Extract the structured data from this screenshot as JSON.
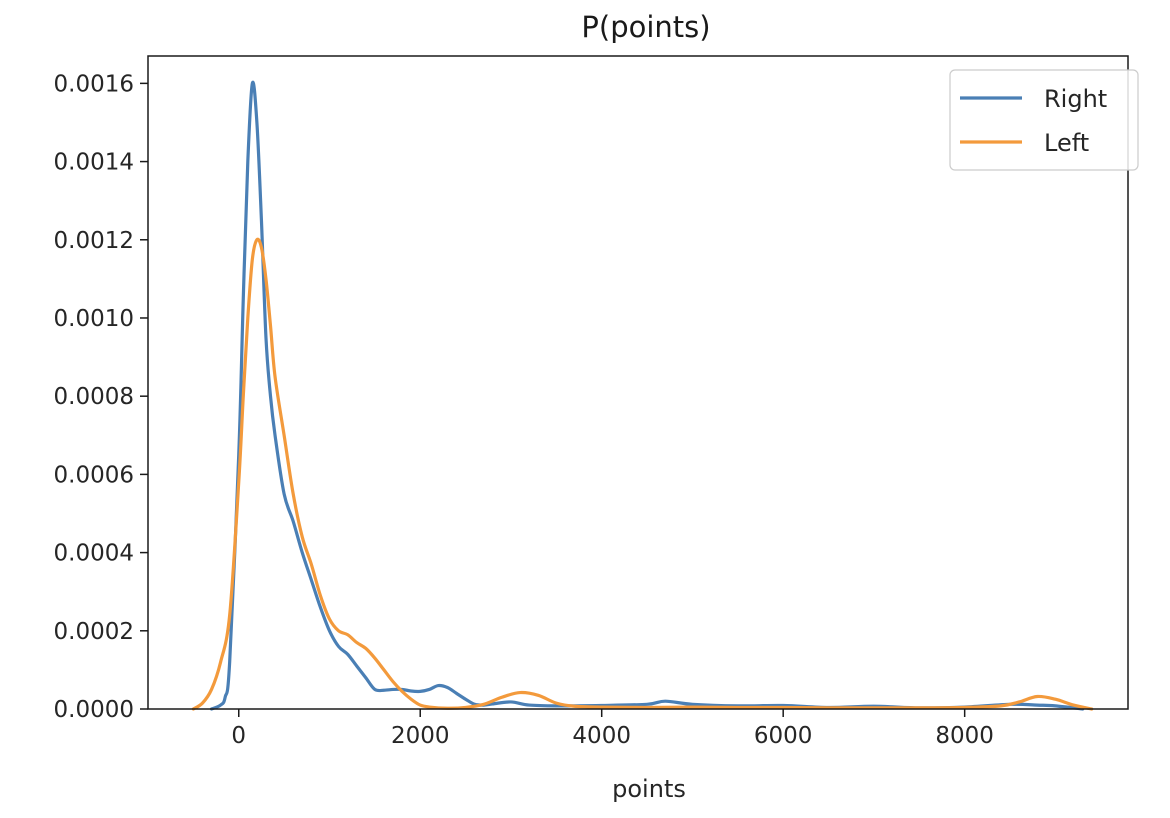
{
  "chart_data": {
    "type": "line",
    "title": "P(points)",
    "xlabel": "points",
    "ylabel": "",
    "xlim": [
      -1000,
      9800
    ],
    "ylim": [
      0,
      0.00167
    ],
    "xticks": [
      0,
      2000,
      4000,
      6000,
      8000
    ],
    "xtick_labels": [
      "0",
      "2000",
      "4000",
      "6000",
      "8000"
    ],
    "yticks": [
      0,
      0.0002,
      0.0004,
      0.0006,
      0.0008,
      0.001,
      0.0012,
      0.0014,
      0.0016
    ],
    "ytick_labels": [
      "0.0000",
      "0.0002",
      "0.0004",
      "0.0006",
      "0.0008",
      "0.0010",
      "0.0012",
      "0.0014",
      "0.0016"
    ],
    "grid": false,
    "legend_position": "top-right",
    "series": [
      {
        "name": "Right",
        "color": "#4a7fb5",
        "x": [
          -300,
          -200,
          -150,
          -100,
          0,
          50,
          100,
          150,
          200,
          250,
          300,
          350,
          400,
          500,
          600,
          700,
          800,
          900,
          1000,
          1100,
          1200,
          1300,
          1400,
          1500,
          1600,
          1700,
          1800,
          1900,
          2000,
          2100,
          2200,
          2300,
          2400,
          2500,
          2600,
          2700,
          2800,
          3000,
          3200,
          3500,
          4000,
          4500,
          4700,
          5000,
          5500,
          6000,
          6500,
          7000,
          7500,
          8000,
          8500,
          8800,
          9000,
          9300
        ],
        "y": [
          0,
          1e-05,
          3e-05,
          0.00012,
          0.00065,
          0.00105,
          0.0014,
          0.0016,
          0.0015,
          0.00125,
          0.00095,
          0.0008,
          0.0007,
          0.00055,
          0.00048,
          0.0004,
          0.00033,
          0.00026,
          0.0002,
          0.00016,
          0.00014,
          0.00011,
          8e-05,
          5e-05,
          4.8e-05,
          5e-05,
          5e-05,
          4.6e-05,
          4.5e-05,
          5e-05,
          6e-05,
          5.5e-05,
          4e-05,
          2.5e-05,
          1.2e-05,
          1e-05,
          1.3e-05,
          1.8e-05,
          1e-05,
          8e-06,
          9e-06,
          1.2e-05,
          2e-05,
          1.2e-05,
          8e-06,
          9e-06,
          4e-06,
          7e-06,
          3e-06,
          5e-06,
          1.2e-05,
          1e-05,
          8e-06,
          0
        ]
      },
      {
        "name": "Left",
        "color": "#f39a3c",
        "x": [
          -500,
          -400,
          -300,
          -200,
          -100,
          0,
          50,
          100,
          150,
          200,
          250,
          300,
          350,
          400,
          500,
          600,
          700,
          800,
          900,
          1000,
          1100,
          1200,
          1300,
          1400,
          1500,
          1600,
          1700,
          1800,
          1900,
          2000,
          2100,
          2300,
          2500,
          2700,
          2900,
          3100,
          3300,
          3500,
          3700,
          4000,
          4500,
          5000,
          5500,
          6000,
          6500,
          7000,
          7500,
          8000,
          8400,
          8600,
          8800,
          9000,
          9200,
          9400
        ],
        "y": [
          0,
          1.5e-05,
          5e-05,
          0.00012,
          0.00024,
          0.00058,
          0.0008,
          0.001,
          0.00115,
          0.0012,
          0.00118,
          0.0011,
          0.00098,
          0.00085,
          0.0007,
          0.00055,
          0.00044,
          0.00037,
          0.00029,
          0.00023,
          0.0002,
          0.00019,
          0.00017,
          0.000155,
          0.00013,
          0.0001,
          7e-05,
          4.5e-05,
          2.5e-05,
          1e-05,
          5e-06,
          2e-06,
          4e-06,
          1.2e-05,
          3e-05,
          4.2e-05,
          3.5e-05,
          1.5e-05,
          7e-06,
          5e-06,
          4e-06,
          5e-06,
          4e-06,
          4e-06,
          3e-06,
          3e-06,
          3e-06,
          4e-06,
          8e-06,
          1.8e-05,
          3.2e-05,
          2.5e-05,
          1e-05,
          0
        ]
      }
    ]
  }
}
